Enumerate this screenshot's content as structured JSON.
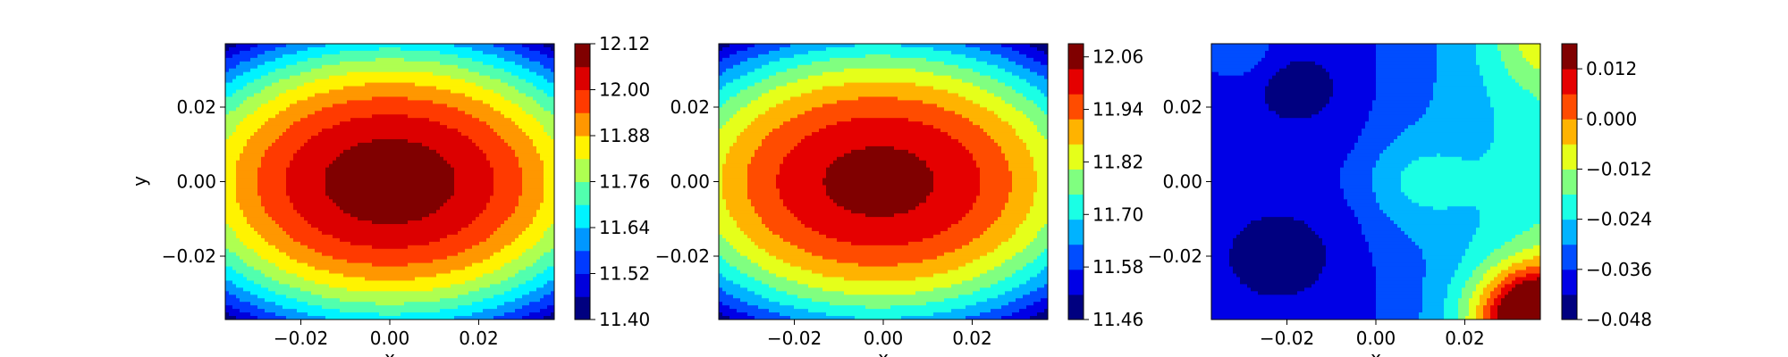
{
  "chart_data": [
    {
      "type": "contourf",
      "xlabel": "x",
      "ylabel": "y",
      "xticks": [
        "−0.02",
        "0.00",
        "0.02"
      ],
      "yticks": [
        "0.02",
        "0.00",
        "−0.02"
      ],
      "xtick_values": [
        -0.02,
        0.0,
        0.02
      ],
      "ytick_values": [
        0.02,
        0.0,
        -0.02
      ],
      "xlim": [
        -0.037,
        0.037
      ],
      "ylim": [
        -0.037,
        0.037
      ],
      "colormap": "jet",
      "levels": [
        11.4,
        11.46,
        11.52,
        11.58,
        11.64,
        11.7,
        11.76,
        11.82,
        11.88,
        11.94,
        12.0,
        12.06,
        12.12
      ],
      "colorbar_ticks": [
        "12.12",
        "12.00",
        "11.88",
        "11.76",
        "11.64",
        "11.52",
        "11.40"
      ],
      "field": {
        "kind": "bowl",
        "center": [
          0.0,
          0.0
        ],
        "peak": 12.1,
        "edge_corner": 11.42,
        "ax": 0.037,
        "ay": 0.028
      }
    },
    {
      "type": "contourf",
      "xlabel": "x",
      "ylabel": "",
      "xticks": [
        "−0.02",
        "0.00",
        "0.02"
      ],
      "yticks": [
        "0.02",
        "0.00",
        "−0.02"
      ],
      "xtick_values": [
        -0.02,
        0.0,
        0.02
      ],
      "ytick_values": [
        0.02,
        0.0,
        -0.02
      ],
      "xlim": [
        -0.037,
        0.037
      ],
      "ylim": [
        -0.037,
        0.037
      ],
      "colormap": "jet",
      "levels": [
        11.46,
        11.52,
        11.58,
        11.64,
        11.7,
        11.76,
        11.82,
        11.88,
        11.94,
        12.0,
        12.06,
        12.09
      ],
      "colorbar_ticks": [
        "12.06",
        "11.94",
        "11.82",
        "11.70",
        "11.58",
        "11.46"
      ],
      "field": {
        "kind": "bowl",
        "center": [
          -0.001,
          0.0
        ],
        "peak": 12.085,
        "edge_corner": 11.47,
        "ax": 0.037,
        "ay": 0.028
      }
    },
    {
      "type": "contourf",
      "xlabel": "x",
      "ylabel": "",
      "xticks": [
        "−0.02",
        "0.00",
        "0.02"
      ],
      "yticks": [
        "0.02",
        "0.00",
        "−0.02"
      ],
      "xtick_values": [
        -0.02,
        0.0,
        0.02
      ],
      "ytick_values": [
        0.02,
        0.0,
        -0.02
      ],
      "xlim": [
        -0.037,
        0.037
      ],
      "ylim": [
        -0.037,
        0.037
      ],
      "colormap": "jet",
      "levels": [
        -0.048,
        -0.042,
        -0.036,
        -0.03,
        -0.024,
        -0.018,
        -0.012,
        -0.006,
        0.0,
        0.006,
        0.012,
        0.018
      ],
      "colorbar_ticks": [
        "0.012",
        "0.000",
        "−0.012",
        "−0.024",
        "−0.036",
        "−0.048"
      ],
      "field": {
        "kind": "difference",
        "base": -0.038,
        "right_rise": 0.03,
        "corner_peak": 0.014
      }
    }
  ]
}
